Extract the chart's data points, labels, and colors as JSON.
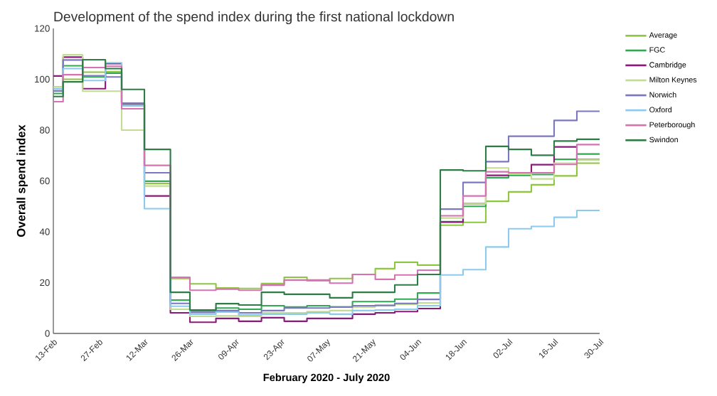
{
  "chart_data": {
    "type": "step",
    "title": "Development of the spend index during the first national lockdown",
    "xlabel": "February 2020 - July 2020",
    "ylabel": "Overall spend index",
    "x": [
      "2020-02-13",
      "2020-02-16",
      "2020-02-22",
      "2020-02-29",
      "2020-03-05",
      "2020-03-12",
      "2020-03-20",
      "2020-03-26",
      "2020-04-03",
      "2020-04-10",
      "2020-04-17",
      "2020-04-24",
      "2020-05-01",
      "2020-05-08",
      "2020-05-15",
      "2020-05-22",
      "2020-05-28",
      "2020-06-04",
      "2020-06-11",
      "2020-06-18",
      "2020-06-25",
      "2020-07-02",
      "2020-07-09",
      "2020-07-16",
      "2020-07-23",
      "2020-07-30"
    ],
    "series": [
      {
        "name": "Average",
        "color": "#8dc63f",
        "values": [
          97,
          100,
          102.8,
          103,
          90,
          59,
          21.6,
          19.5,
          17.9,
          17.7,
          19.6,
          22.1,
          20.7,
          21.6,
          23.2,
          25.5,
          28,
          26.9,
          42.6,
          43.7,
          52,
          55.7,
          58.5,
          62,
          67,
          67
        ]
      },
      {
        "name": "FGC",
        "color": "#33a852",
        "values": [
          94.4,
          105.3,
          100.9,
          102.4,
          90.5,
          59.9,
          13.1,
          8.9,
          10,
          9.5,
          10.9,
          10.4,
          10.9,
          10.4,
          12.5,
          12.5,
          13.5,
          15.9,
          44,
          50,
          61.3,
          62.2,
          62.5,
          68.5,
          70.6,
          70.6
        ]
      },
      {
        "name": "Cambridge",
        "color": "#8b1a7c",
        "values": [
          101.3,
          108.7,
          96.3,
          106.2,
          90.5,
          54.1,
          8.1,
          4.4,
          5.9,
          4.8,
          6.2,
          4.8,
          5.9,
          5.9,
          7.6,
          8.1,
          8.6,
          9.8,
          43.8,
          51,
          62.2,
          62.7,
          66.4,
          73.4,
          68.4,
          68.4
        ]
      },
      {
        "name": "Milton Keynes",
        "color": "#c3dc93",
        "values": [
          97,
          109.6,
          95.3,
          95.3,
          80,
          58,
          9.5,
          6.7,
          6.9,
          6.7,
          8.1,
          8.1,
          8.6,
          9,
          10.4,
          11,
          11.5,
          12,
          45.4,
          51,
          65.1,
          62.7,
          60.8,
          67,
          68.2,
          68.2
        ]
      },
      {
        "name": "Norwich",
        "color": "#7b78c0",
        "values": [
          95.4,
          107.6,
          101.4,
          100.9,
          90.5,
          63.2,
          11.8,
          8.3,
          9,
          8.1,
          9,
          10,
          10,
          10.4,
          10.9,
          11,
          11.8,
          13.4,
          48.9,
          59.4,
          67.6,
          77.6,
          77.6,
          83.8,
          87.4,
          87.4
        ]
      },
      {
        "name": "Oxford",
        "color": "#8ccbee",
        "values": [
          96.2,
          104.2,
          99.5,
          106.5,
          89.5,
          49.1,
          10.7,
          7.6,
          8.4,
          7.3,
          7.6,
          7.6,
          8.1,
          7.6,
          9,
          9.2,
          9.5,
          10.9,
          23,
          25.1,
          34,
          41.2,
          42.1,
          45.7,
          48.4,
          48.4
        ]
      },
      {
        "name": "Peterborough",
        "color": "#d672b2",
        "values": [
          91.2,
          101.8,
          104.6,
          105.1,
          88.4,
          66.1,
          22.1,
          17,
          17.4,
          17,
          19,
          21,
          21,
          19.8,
          23.2,
          21.3,
          23,
          24.9,
          46.3,
          54.1,
          63.6,
          63.2,
          63.2,
          66.5,
          74.3,
          74.3
        ]
      },
      {
        "name": "Swindon",
        "color": "#2e7d46",
        "values": [
          93.2,
          99,
          107.7,
          104.2,
          96,
          72.4,
          16.2,
          9.2,
          11.7,
          11.2,
          16.2,
          15.4,
          15.4,
          14,
          16.2,
          16.2,
          19.1,
          23.2,
          64.3,
          64,
          73.6,
          72.4,
          70.1,
          75.7,
          76.4,
          76.4
        ]
      }
    ],
    "xlim": [
      "2020-02-13",
      "2020-07-30"
    ],
    "ylim": [
      0,
      120
    ],
    "xticks": [
      {
        "value": "2020-02-13",
        "label": "13-Feb"
      },
      {
        "value": "2020-02-27",
        "label": "27-Feb"
      },
      {
        "value": "2020-03-12",
        "label": "12-Mar"
      },
      {
        "value": "2020-03-26",
        "label": "26-Mar"
      },
      {
        "value": "2020-04-09",
        "label": "09-Apr"
      },
      {
        "value": "2020-04-23",
        "label": "23-Apr"
      },
      {
        "value": "2020-05-07",
        "label": "07-May"
      },
      {
        "value": "2020-05-21",
        "label": "21-May"
      },
      {
        "value": "2020-06-04",
        "label": "04-Jun"
      },
      {
        "value": "2020-06-18",
        "label": "18-Jun"
      },
      {
        "value": "2020-07-02",
        "label": "02-Jul"
      },
      {
        "value": "2020-07-16",
        "label": "16-Jul"
      },
      {
        "value": "2020-07-30",
        "label": "30-Jul"
      }
    ],
    "yticks": [
      0,
      20,
      40,
      60,
      80,
      100,
      120
    ],
    "legend": "right",
    "grid": false,
    "marker": "none",
    "line_style": "solid"
  }
}
